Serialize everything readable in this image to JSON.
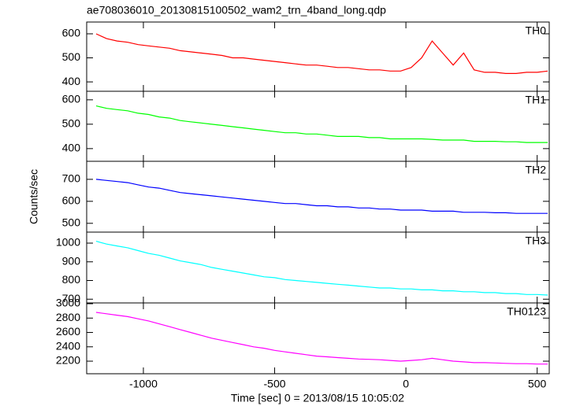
{
  "title": "ae708036010_20130815100502_wam2_trn_4band_long.qdp",
  "y_label": "Counts/sec",
  "x_label": "Time [sec] 0 = 2013/08/15 10:05:02",
  "chart_data": [
    {
      "type": "line",
      "xlim": [
        -1216,
        546
      ],
      "ylim": [
        361,
        649
      ],
      "yticks": [
        400,
        500,
        600
      ],
      "x": [
        -1180,
        -1140,
        -1100,
        -1060,
        -1020,
        -980,
        -940,
        -900,
        -860,
        -820,
        -780,
        -740,
        -700,
        -660,
        -620,
        -580,
        -540,
        -500,
        -460,
        -420,
        -380,
        -340,
        -300,
        -260,
        -220,
        -180,
        -140,
        -100,
        -60,
        -20,
        20,
        60,
        100,
        140,
        180,
        220,
        260,
        300,
        340,
        380,
        420,
        460,
        500,
        540
      ],
      "series": [
        {
          "name": "TH0",
          "color": "#ff0000",
          "values": [
            600,
            580,
            570,
            565,
            555,
            550,
            545,
            540,
            530,
            525,
            520,
            515,
            510,
            500,
            500,
            495,
            490,
            485,
            480,
            475,
            470,
            470,
            465,
            460,
            460,
            455,
            450,
            450,
            445,
            445,
            460,
            500,
            570,
            520,
            470,
            520,
            450,
            440,
            440,
            435,
            435,
            440,
            440,
            445
          ]
        }
      ]
    },
    {
      "type": "line",
      "xlim": [
        -1216,
        546
      ],
      "ylim": [
        348,
        635
      ],
      "yticks": [
        400,
        500,
        600
      ],
      "x": [
        -1180,
        -1140,
        -1100,
        -1060,
        -1020,
        -980,
        -940,
        -900,
        -860,
        -820,
        -780,
        -740,
        -700,
        -660,
        -620,
        -580,
        -540,
        -500,
        -460,
        -420,
        -380,
        -340,
        -300,
        -260,
        -220,
        -180,
        -140,
        -100,
        -60,
        -20,
        20,
        60,
        100,
        140,
        180,
        220,
        260,
        300,
        340,
        380,
        420,
        460,
        500,
        540
      ],
      "series": [
        {
          "name": "TH1",
          "color": "#00ff00",
          "values": [
            575,
            565,
            560,
            555,
            545,
            540,
            530,
            525,
            515,
            510,
            505,
            500,
            495,
            490,
            485,
            480,
            475,
            470,
            465,
            465,
            460,
            460,
            455,
            450,
            450,
            450,
            445,
            445,
            440,
            440,
            440,
            440,
            438,
            435,
            435,
            435,
            430,
            430,
            430,
            428,
            428,
            425,
            425,
            425
          ]
        }
      ]
    },
    {
      "type": "line",
      "xlim": [
        -1216,
        546
      ],
      "ylim": [
        460,
        782
      ],
      "yticks": [
        500,
        600,
        700
      ],
      "x": [
        -1180,
        -1140,
        -1100,
        -1060,
        -1020,
        -980,
        -940,
        -900,
        -860,
        -820,
        -780,
        -740,
        -700,
        -660,
        -620,
        -580,
        -540,
        -500,
        -460,
        -420,
        -380,
        -340,
        -300,
        -260,
        -220,
        -180,
        -140,
        -100,
        -60,
        -20,
        20,
        60,
        100,
        140,
        180,
        220,
        260,
        300,
        340,
        380,
        420,
        460,
        500,
        540
      ],
      "series": [
        {
          "name": "TH2",
          "color": "#0000ff",
          "values": [
            700,
            695,
            690,
            685,
            675,
            665,
            660,
            650,
            640,
            635,
            630,
            625,
            620,
            615,
            610,
            605,
            600,
            595,
            590,
            590,
            585,
            580,
            580,
            575,
            575,
            570,
            570,
            565,
            565,
            560,
            560,
            560,
            555,
            555,
            555,
            550,
            550,
            550,
            548,
            548,
            545,
            545,
            545,
            545
          ]
        }
      ]
    },
    {
      "type": "line",
      "xlim": [
        -1216,
        546
      ],
      "ylim": [
        680,
        1059
      ],
      "yticks": [
        700,
        800,
        900,
        1000
      ],
      "x": [
        -1180,
        -1140,
        -1100,
        -1060,
        -1020,
        -980,
        -940,
        -900,
        -860,
        -820,
        -780,
        -740,
        -700,
        -660,
        -620,
        -580,
        -540,
        -500,
        -460,
        -420,
        -380,
        -340,
        -300,
        -260,
        -220,
        -180,
        -140,
        -100,
        -60,
        -20,
        20,
        60,
        100,
        140,
        180,
        220,
        260,
        300,
        340,
        380,
        420,
        460,
        500,
        540
      ],
      "series": [
        {
          "name": "TH3",
          "color": "#00ffff",
          "values": [
            1010,
            995,
            985,
            975,
            960,
            945,
            935,
            920,
            905,
            895,
            885,
            870,
            860,
            850,
            840,
            830,
            820,
            815,
            805,
            800,
            795,
            790,
            785,
            780,
            775,
            770,
            765,
            760,
            760,
            755,
            755,
            750,
            750,
            745,
            745,
            740,
            740,
            735,
            735,
            730,
            730,
            725,
            725,
            722
          ]
        }
      ]
    },
    {
      "type": "line",
      "xlim": [
        -1216,
        546
      ],
      "xticks": [
        -1000,
        -500,
        0,
        500
      ],
      "ylim": [
        2025,
        3011
      ],
      "yticks": [
        2200,
        2400,
        2600,
        2800,
        3000
      ],
      "x": [
        -1180,
        -1140,
        -1100,
        -1060,
        -1020,
        -980,
        -940,
        -900,
        -860,
        -820,
        -780,
        -740,
        -700,
        -660,
        -620,
        -580,
        -540,
        -500,
        -460,
        -420,
        -380,
        -340,
        -300,
        -260,
        -220,
        -180,
        -140,
        -100,
        -60,
        -20,
        20,
        60,
        100,
        140,
        180,
        220,
        260,
        300,
        340,
        380,
        420,
        460,
        500,
        540
      ],
      "series": [
        {
          "name": "TH0123",
          "color": "#ff00ff",
          "values": [
            2880,
            2860,
            2840,
            2820,
            2790,
            2760,
            2720,
            2680,
            2640,
            2600,
            2560,
            2520,
            2490,
            2460,
            2430,
            2400,
            2380,
            2350,
            2330,
            2310,
            2290,
            2270,
            2260,
            2250,
            2240,
            2230,
            2225,
            2220,
            2210,
            2200,
            2210,
            2220,
            2240,
            2220,
            2200,
            2190,
            2180,
            2180,
            2175,
            2170,
            2165,
            2165,
            2160,
            2160
          ]
        }
      ]
    }
  ]
}
